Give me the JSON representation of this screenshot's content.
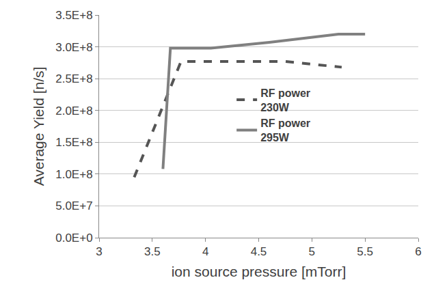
{
  "chart_data": {
    "type": "line",
    "x_label": "ion source pressure [mTorr]",
    "y_label": "Average Yield [n/s]",
    "xlim": [
      3,
      6
    ],
    "xticks": [
      3,
      3.5,
      4,
      4.5,
      5,
      5.5,
      6
    ],
    "ylim": [
      0,
      350000000
    ],
    "yticks": [
      {
        "value": 0,
        "label": "0.0E+0"
      },
      {
        "value": 50000000,
        "label": "5.0E+7"
      },
      {
        "value": 100000000,
        "label": "1.0E+8"
      },
      {
        "value": 150000000,
        "label": "1.5E+8"
      },
      {
        "value": 200000000,
        "label": "2.0E+8"
      },
      {
        "value": 250000000,
        "label": "2.5E+8"
      },
      {
        "value": 300000000,
        "label": "3.0E+8"
      },
      {
        "value": 350000000,
        "label": "3.5E+8"
      }
    ],
    "grid": true,
    "legend": "right",
    "series": [
      {
        "name": "RF power 230W",
        "color": "#555555",
        "line_style": "dash",
        "x": [
          3.33,
          3.77,
          4.75,
          5.28
        ],
        "values": [
          95000000,
          277000000,
          277000000,
          268000000
        ]
      },
      {
        "name": "RF power 295W",
        "color": "#808080",
        "line_style": "solid",
        "x": [
          3.6,
          3.67,
          4.05,
          4.6,
          5.25,
          5.5
        ],
        "values": [
          108000000,
          298000000,
          298000000,
          307000000,
          320000000,
          320000000
        ]
      }
    ]
  }
}
